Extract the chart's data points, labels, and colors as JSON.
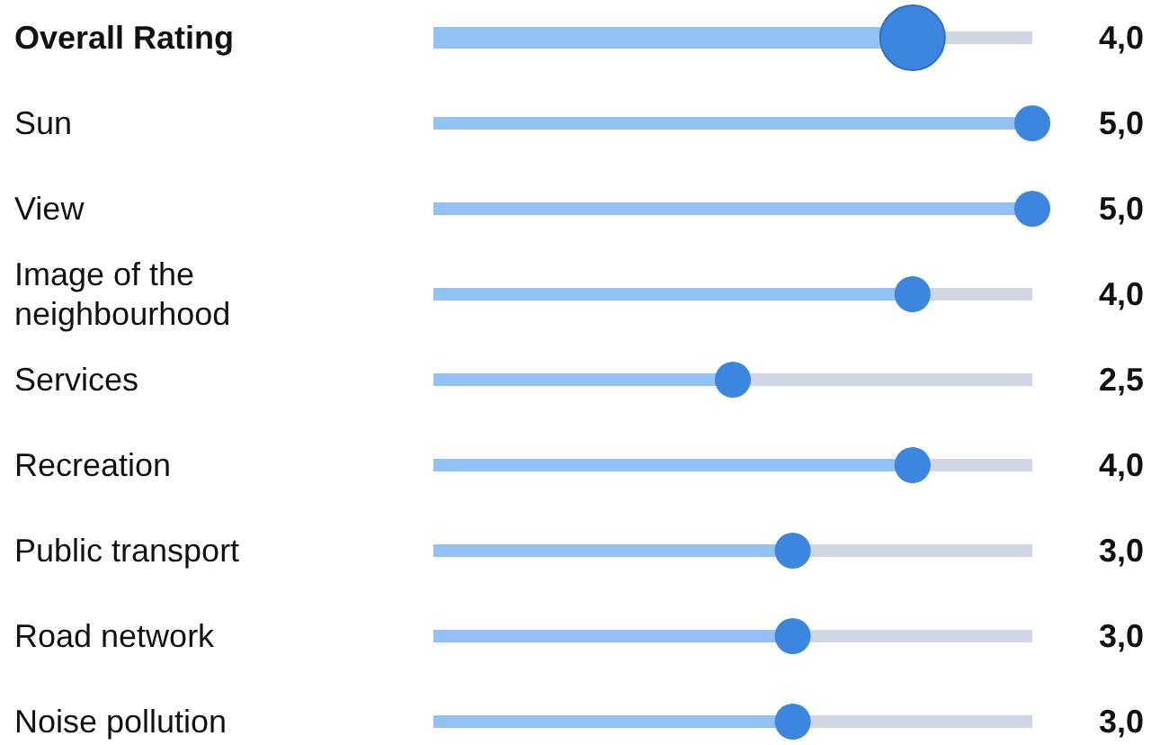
{
  "chart_data": {
    "type": "lollipop",
    "orientation": "horizontal",
    "categories": [
      "Overall Rating",
      "Sun",
      "View",
      "Image of the neighbourhood",
      "Services",
      "Recreation",
      "Public transport",
      "Road network",
      "Noise pollution"
    ],
    "values": [
      4,
      5,
      5,
      4,
      2.5,
      4,
      3,
      3,
      3
    ],
    "value_labels": [
      "4,0",
      "5,0",
      "5,0",
      "4,0",
      "2,5",
      "4,0",
      "3,0",
      "3,0",
      "3,0"
    ],
    "color": "#3d86e0",
    "sizes": [
      1,
      0.31,
      0.31,
      0.31,
      0.31,
      0.31,
      0.31,
      0.31,
      0.31
    ],
    "xlim": [
      0,
      5
    ],
    "grid": "y"
  }
}
